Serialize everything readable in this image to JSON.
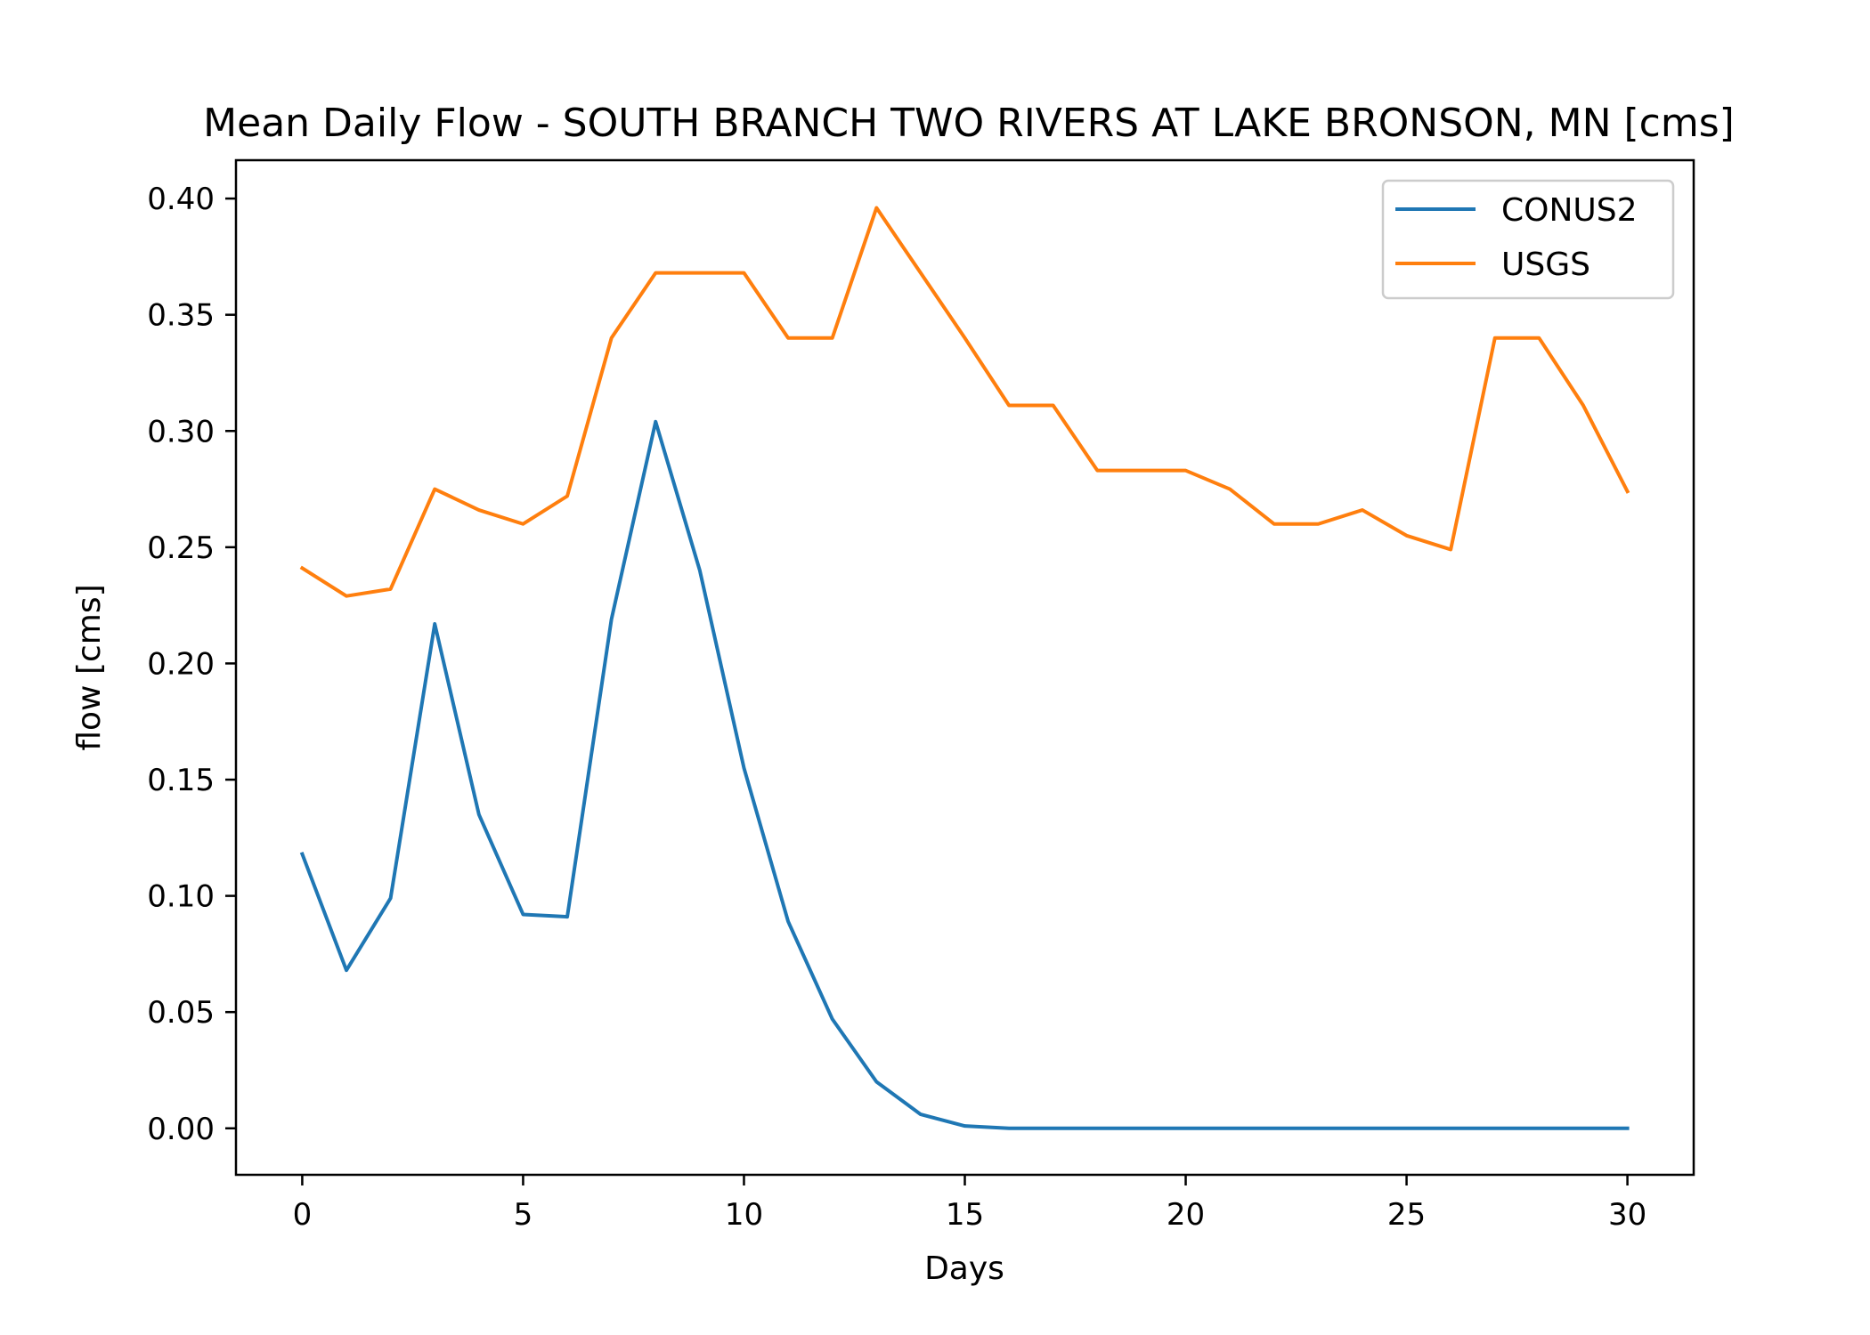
{
  "chart_data": {
    "type": "line",
    "title": "Mean Daily Flow - SOUTH BRANCH TWO RIVERS AT LAKE BRONSON, MN [cms]",
    "xlabel": "Days",
    "ylabel": "flow [cms]",
    "xlim": [
      -1.5,
      31.5
    ],
    "ylim": [
      -0.02,
      0.4165
    ],
    "xticks": [
      0,
      5,
      10,
      15,
      20,
      25,
      30
    ],
    "xtick_labels": [
      "0",
      "5",
      "10",
      "15",
      "20",
      "25",
      "30"
    ],
    "yticks": [
      0.0,
      0.05,
      0.1,
      0.15,
      0.2,
      0.25,
      0.3,
      0.35,
      0.4
    ],
    "ytick_labels": [
      "0.00",
      "0.05",
      "0.10",
      "0.15",
      "0.20",
      "0.25",
      "0.30",
      "0.35",
      "0.40"
    ],
    "grid": false,
    "legend_position": "top-right",
    "x": [
      0,
      1,
      2,
      3,
      4,
      5,
      6,
      7,
      8,
      9,
      10,
      11,
      12,
      13,
      14,
      15,
      16,
      17,
      18,
      19,
      20,
      21,
      22,
      23,
      24,
      25,
      26,
      27,
      28,
      29,
      30
    ],
    "series": [
      {
        "name": "CONUS2",
        "color": "#1f77b4",
        "values": [
          0.118,
          0.068,
          0.099,
          0.217,
          0.135,
          0.092,
          0.091,
          0.219,
          0.304,
          0.24,
          0.155,
          0.089,
          0.047,
          0.02,
          0.006,
          0.001,
          0.0,
          0.0,
          0.0,
          0.0,
          0.0,
          0.0,
          0.0,
          0.0,
          0.0,
          0.0,
          0.0,
          0.0,
          0.0,
          0.0,
          0.0
        ]
      },
      {
        "name": "USGS",
        "color": "#ff7f0e",
        "values": [
          0.241,
          0.229,
          0.232,
          0.275,
          0.266,
          0.26,
          0.272,
          0.34,
          0.368,
          0.368,
          0.368,
          0.34,
          0.34,
          0.396,
          0.368,
          0.34,
          0.311,
          0.311,
          0.283,
          0.283,
          0.283,
          0.275,
          0.26,
          0.26,
          0.266,
          0.255,
          0.249,
          0.34,
          0.34,
          0.311,
          0.274
        ]
      }
    ]
  }
}
